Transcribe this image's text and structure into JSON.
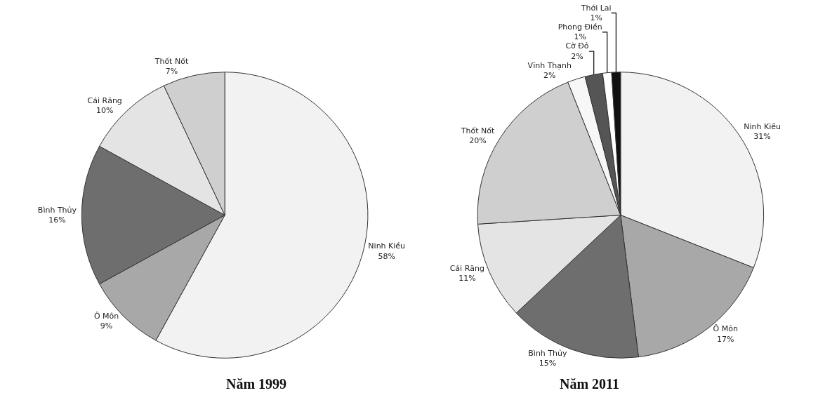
{
  "chart_data": [
    {
      "type": "pie",
      "title": "Năm 1999",
      "categories": [
        "Ninh Kiều",
        "Ô Môn",
        "Bình Thủy",
        "Cái Răng",
        "Thốt Nốt"
      ],
      "values": [
        58,
        9,
        16,
        10,
        7
      ],
      "value_labels": [
        "58%",
        "9%",
        "16%",
        "10%",
        "7%"
      ],
      "colors": [
        "#f2f2f2",
        "#a8a8a8",
        "#6e6e6e",
        "#e4e4e4",
        "#cfcfcf"
      ]
    },
    {
      "type": "pie",
      "title": "Năm 2011",
      "categories": [
        "Ninh Kiều",
        "Ô Môn",
        "Bình Thủy",
        "Cái Răng",
        "Thốt Nốt",
        "Vĩnh Thạnh",
        "Cờ Đỏ",
        "Phong Điền",
        "Thới Lai"
      ],
      "values": [
        31,
        17,
        15,
        11,
        20,
        2,
        2,
        1,
        1
      ],
      "value_labels": [
        "31%",
        "17%",
        "15%",
        "11%",
        "20%",
        "2%",
        "2%",
        "1%",
        "1%"
      ],
      "colors": [
        "#f2f2f2",
        "#a8a8a8",
        "#6e6e6e",
        "#e4e4e4",
        "#cfcfcf",
        "#f7f7f7",
        "#555555",
        "#ffffff",
        "#111111"
      ]
    }
  ]
}
